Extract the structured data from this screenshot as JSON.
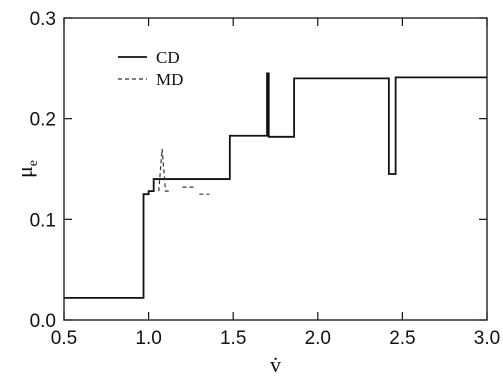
{
  "chart_data": {
    "type": "line",
    "xlabel": "v̇",
    "ylabel": "μ",
    "ylabel_sub": "e",
    "xlim": [
      0.5,
      3.0
    ],
    "ylim": [
      0.0,
      0.3
    ],
    "xticks": [
      "0.5",
      "1.0",
      "1.5",
      "2.0",
      "2.5",
      "3.0"
    ],
    "yticks": [
      "0.0",
      "0.1",
      "0.2",
      "0.3"
    ],
    "legend_position": "top-left",
    "series": [
      {
        "name": "CD",
        "style": "solid",
        "color": "#111111",
        "points": [
          [
            0.5,
            0.022
          ],
          [
            0.97,
            0.022
          ],
          [
            0.97,
            0.125
          ],
          [
            1.0,
            0.125
          ],
          [
            1.0,
            0.128
          ],
          [
            1.03,
            0.128
          ],
          [
            1.03,
            0.14
          ],
          [
            1.48,
            0.14
          ],
          [
            1.48,
            0.183
          ],
          [
            1.7,
            0.183
          ],
          [
            1.7,
            0.245
          ],
          [
            1.71,
            0.245
          ],
          [
            1.71,
            0.182
          ],
          [
            1.86,
            0.182
          ],
          [
            1.86,
            0.24
          ],
          [
            2.42,
            0.24
          ],
          [
            2.42,
            0.145
          ],
          [
            2.46,
            0.145
          ],
          [
            2.46,
            0.241
          ],
          [
            3.0,
            0.241
          ]
        ]
      },
      {
        "name": "MD",
        "style": "dashed",
        "color": "#333333",
        "points": [
          [
            1.06,
            0.128
          ],
          [
            1.08,
            0.17
          ],
          [
            1.1,
            0.128
          ],
          [
            1.13,
            0.128
          ]
        ]
      },
      {
        "name": "",
        "style": "dashed",
        "color": "#333333",
        "points": [
          [
            1.2,
            0.132
          ],
          [
            1.28,
            0.132
          ]
        ]
      },
      {
        "name": "",
        "style": "dashed",
        "color": "#333333",
        "points": [
          [
            1.3,
            0.125
          ],
          [
            1.36,
            0.125
          ]
        ]
      }
    ]
  }
}
